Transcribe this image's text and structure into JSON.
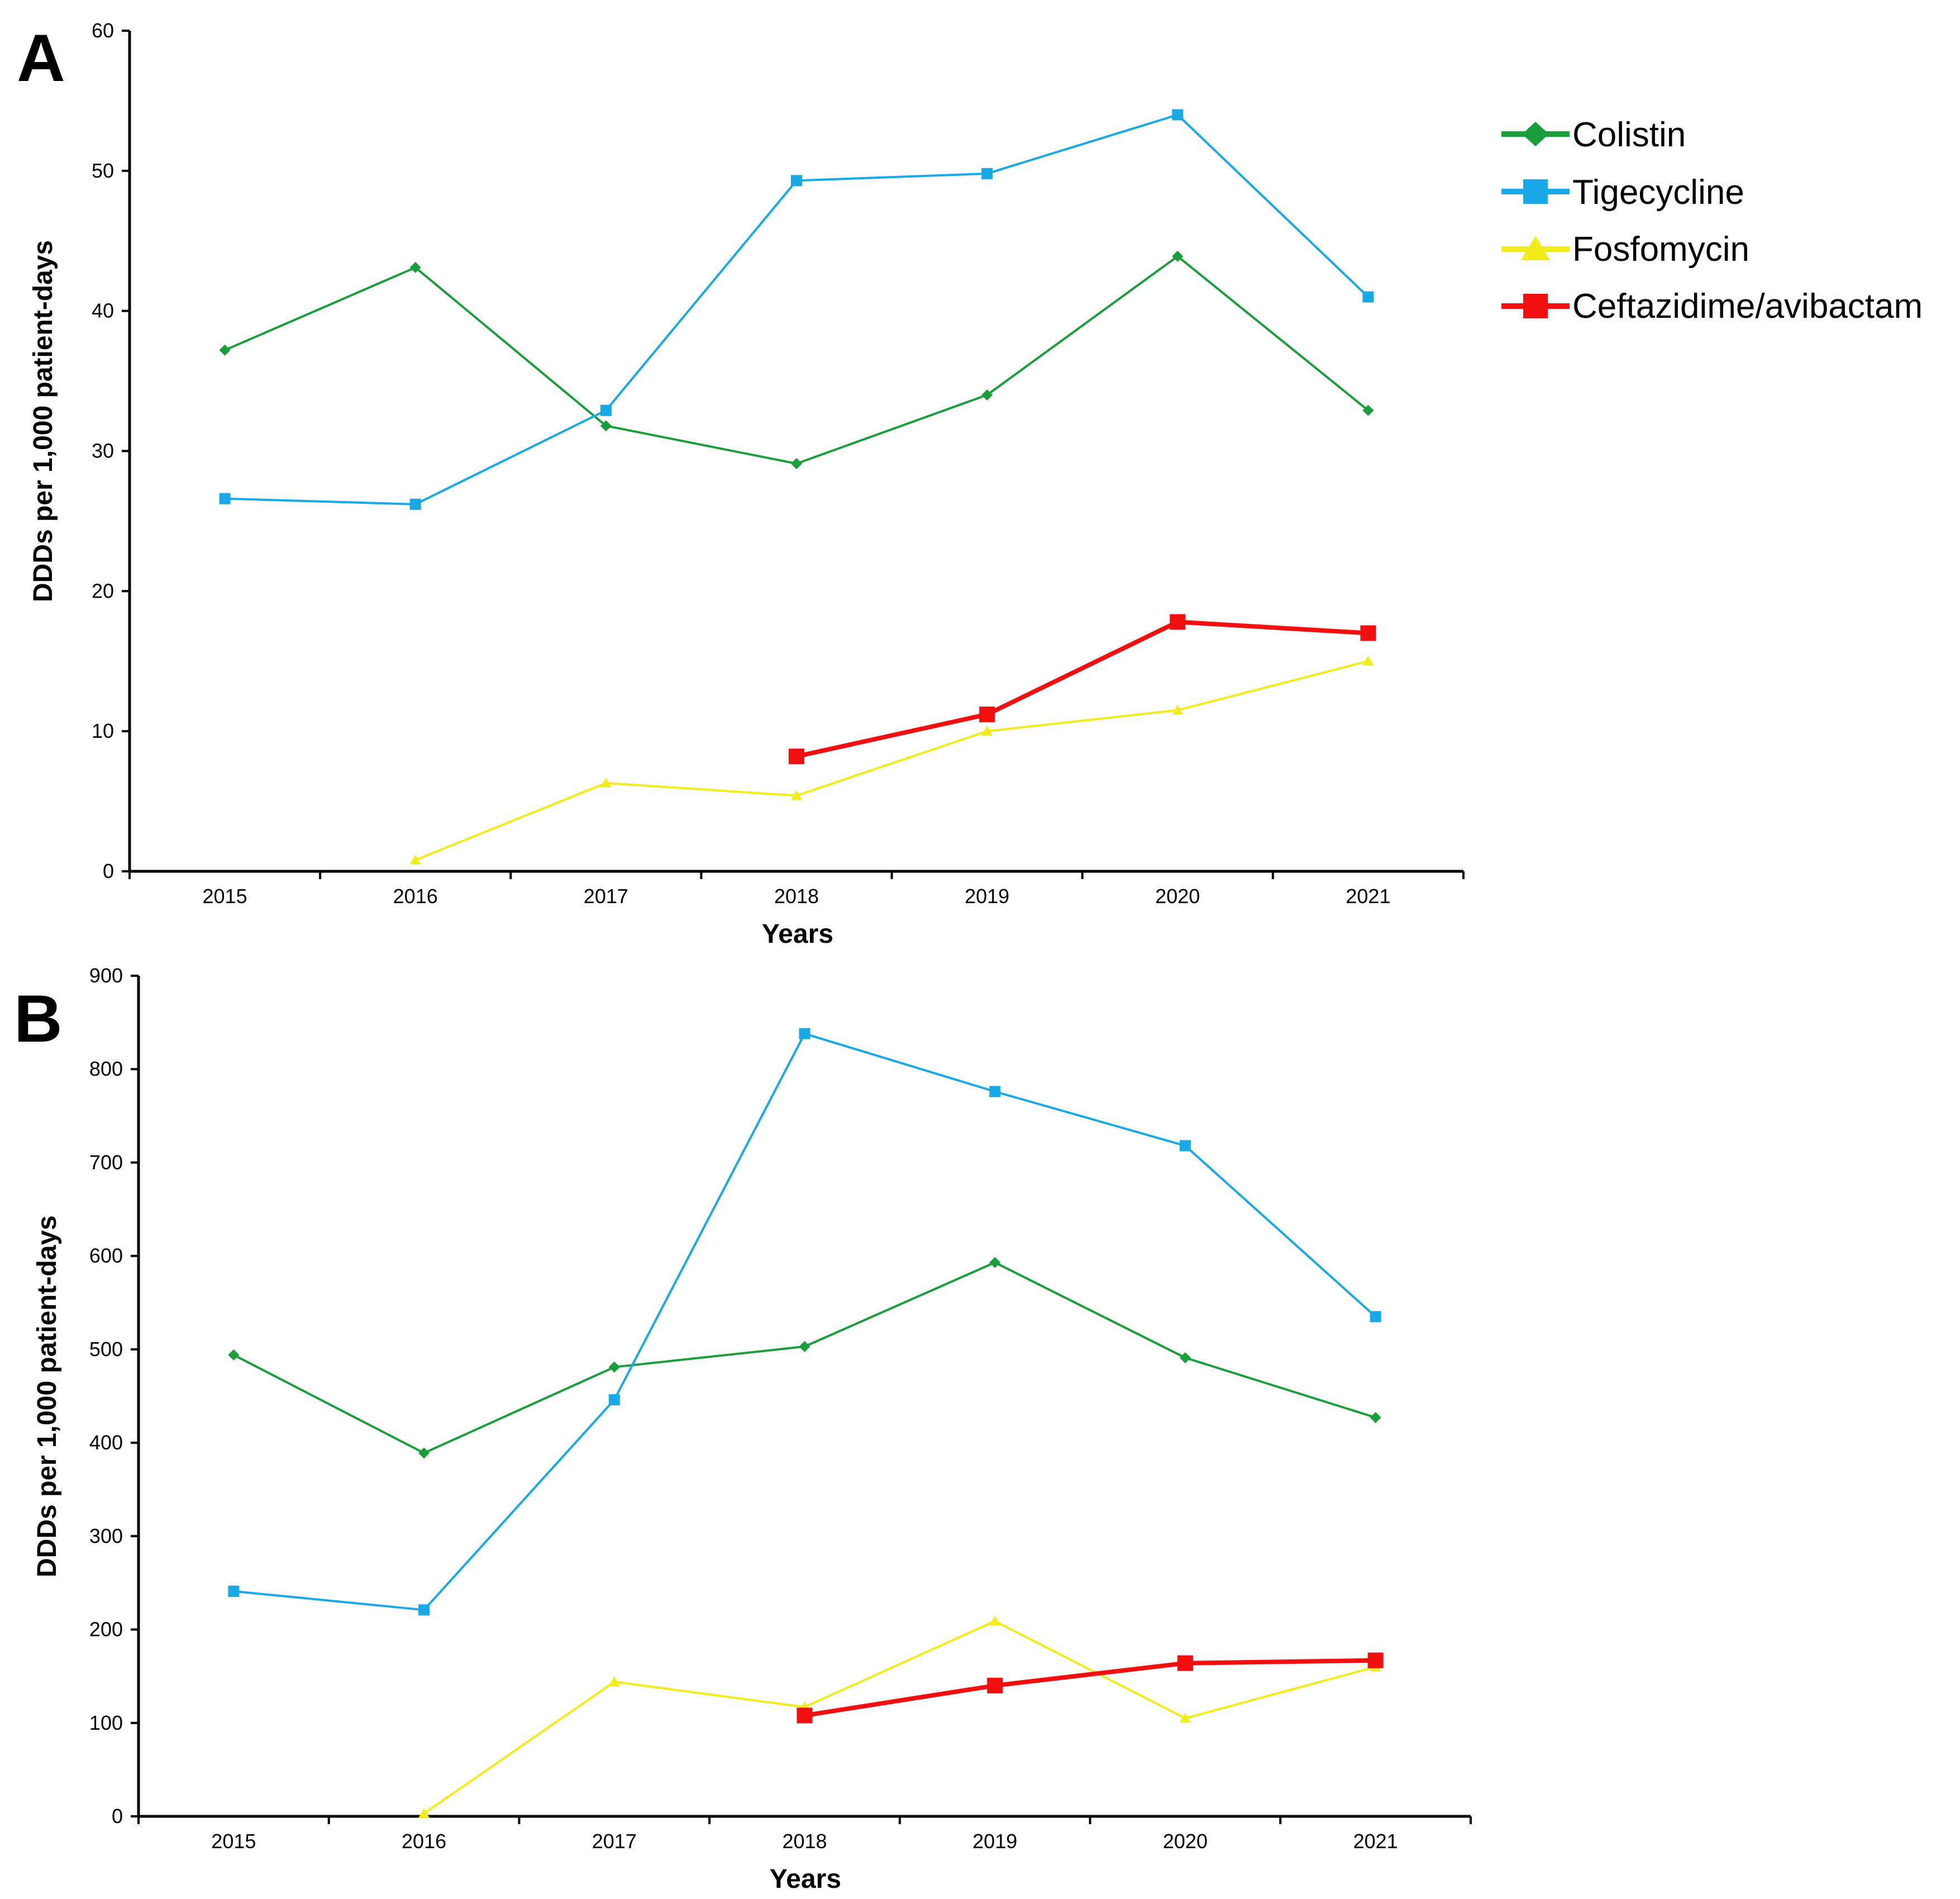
{
  "colors": {
    "Colistin": "#1a9e3c",
    "Tigecycline": "#19a9e6",
    "Fosfomycin": "#f3ec1d",
    "Ceftazidime/avibactam": "#f20f0f"
  },
  "legend": {
    "entries": [
      {
        "name": "Colistin",
        "marker": "diamond-icon"
      },
      {
        "name": "Tigecycline",
        "marker": "square-icon"
      },
      {
        "name": "Fosfomycin",
        "marker": "triangle-icon"
      },
      {
        "name": "Ceftazidime/avibactam",
        "marker": "square-icon"
      }
    ]
  },
  "chart_data": [
    {
      "panel": "A",
      "type": "line",
      "xlabel": "Years",
      "ylabel": "DDDs per 1,000 patient-days",
      "categories": [
        "2015",
        "2016",
        "2017",
        "2018",
        "2019",
        "2020",
        "2021"
      ],
      "ylim": [
        0,
        60
      ],
      "yticks": [
        0,
        10,
        20,
        30,
        40,
        50,
        60
      ],
      "series": [
        {
          "name": "Colistin",
          "marker": "diamond",
          "values": [
            37.2,
            43.1,
            31.8,
            29.1,
            34.0,
            43.9,
            32.9
          ]
        },
        {
          "name": "Tigecycline",
          "marker": "square",
          "values": [
            26.6,
            26.2,
            32.9,
            49.3,
            49.8,
            54.0,
            41.0
          ]
        },
        {
          "name": "Fosfomycin",
          "marker": "triangle",
          "values": [
            null,
            0.8,
            6.3,
            5.4,
            10.0,
            11.5,
            15.0
          ]
        },
        {
          "name": "Ceftazidime/avibactam",
          "marker": "square",
          "values": [
            null,
            null,
            null,
            8.2,
            11.2,
            17.8,
            17.0
          ]
        }
      ]
    },
    {
      "panel": "B",
      "type": "line",
      "xlabel": "Years",
      "ylabel": "DDDs per 1,000 patient-days",
      "categories": [
        "2015",
        "2016",
        "2017",
        "2018",
        "2019",
        "2020",
        "2021"
      ],
      "ylim": [
        0,
        900
      ],
      "yticks": [
        0,
        100,
        200,
        300,
        400,
        500,
        600,
        700,
        800,
        900
      ],
      "series": [
        {
          "name": "Colistin",
          "marker": "diamond",
          "values": [
            494,
            389,
            481,
            503,
            593,
            491,
            427
          ]
        },
        {
          "name": "Tigecycline",
          "marker": "square",
          "values": [
            241,
            221,
            446,
            838,
            776,
            718,
            535
          ]
        },
        {
          "name": "Fosfomycin",
          "marker": "triangle",
          "values": [
            null,
            3,
            144,
            117,
            209,
            105,
            160
          ]
        },
        {
          "name": "Ceftazidime/avibactam",
          "marker": "square",
          "values": [
            null,
            null,
            null,
            108,
            140,
            164,
            167
          ]
        }
      ]
    }
  ]
}
